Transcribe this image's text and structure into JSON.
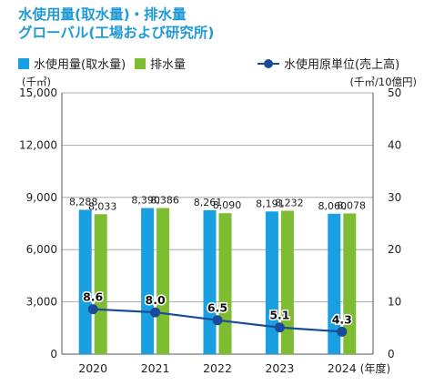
{
  "titles": {
    "line1": "水使用量(取水量)・排水量",
    "line2": "グローバル(工場および研究所)"
  },
  "units": {
    "left": "(千㎥)",
    "right": "(千㎥/10億円)",
    "x_suffix": "(年度)"
  },
  "colors": {
    "intake": "#1a9fe0",
    "drainage": "#7ebd32",
    "intensity": "#1a4a9a",
    "grid": "#9a9a9a",
    "title": "#1f9ad6"
  },
  "chart_data": {
    "type": "bar",
    "categories": [
      "2020",
      "2021",
      "2022",
      "2023",
      "2024"
    ],
    "series": [
      {
        "name": "水使用量(取水量)",
        "type": "bar",
        "axis": "left",
        "values": [
          8288,
          8390,
          8261,
          8191,
          8060
        ],
        "labels": [
          "8,288",
          "8,390",
          "8,261",
          "8,191",
          "8,060"
        ]
      },
      {
        "name": "排水量",
        "type": "bar",
        "axis": "left",
        "values": [
          8033,
          8386,
          8090,
          8232,
          8078
        ],
        "labels": [
          "8,033",
          "8,386",
          "8,090",
          "8,232",
          "8,078"
        ]
      },
      {
        "name": "水使用原単位(売上高)",
        "type": "line",
        "axis": "right",
        "values": [
          8.6,
          8.0,
          6.5,
          5.1,
          4.3
        ],
        "labels": [
          "8.6",
          "8.0",
          "6.5",
          "5.1",
          "4.3"
        ]
      }
    ],
    "y_left": {
      "min": 0,
      "max": 15000,
      "ticks": [
        0,
        3000,
        6000,
        9000,
        12000,
        15000
      ],
      "tick_labels": [
        "0",
        "3,000",
        "6,000",
        "9,000",
        "12,000",
        "15,000"
      ]
    },
    "y_right": {
      "min": 0,
      "max": 50,
      "ticks": [
        0,
        10,
        20,
        30,
        40,
        50
      ],
      "tick_labels": [
        "0",
        "10",
        "20",
        "30",
        "40",
        "50"
      ]
    },
    "grid": true,
    "legend_position": "top"
  }
}
